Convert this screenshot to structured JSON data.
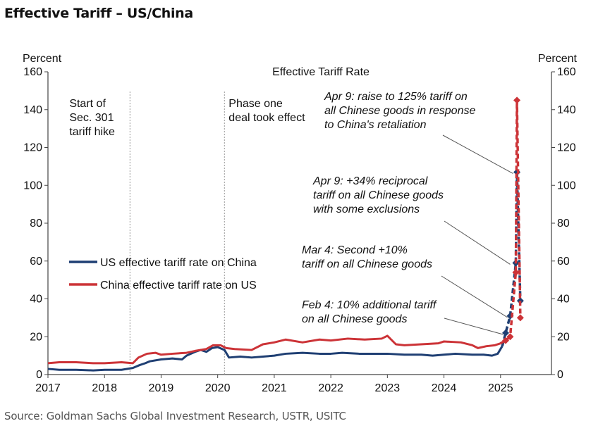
{
  "header": {
    "title": "Effective Tariff – US/China"
  },
  "footer": {
    "source": "Source: Goldman Sachs Global Investment Research, USTR, USITC"
  },
  "colors": {
    "us_series": "#1f3f73",
    "china_series": "#cc3337",
    "axis": "#444444",
    "vline": "#999999",
    "annotation_line": "#555555"
  },
  "chart_data": {
    "type": "line",
    "title": "Effective Tariff Rate",
    "ylabel_left": "Percent",
    "ylabel_right": "Percent",
    "ylim": [
      0,
      160
    ],
    "xlim": [
      2017,
      2025.9
    ],
    "yticks": [
      "0",
      "20",
      "40",
      "60",
      "80",
      "100",
      "120",
      "140",
      "160"
    ],
    "xticks": [
      "2017",
      "2018",
      "2019",
      "2020",
      "2021",
      "2022",
      "2023",
      "2024",
      "2025"
    ],
    "grid": false,
    "legend_position": "center-left",
    "series": [
      {
        "name": "US effective tariff rate on China",
        "x": [
          2017.0,
          2017.2,
          2017.5,
          2017.8,
          2018.0,
          2018.3,
          2018.5,
          2018.62,
          2018.72,
          2018.8,
          2019.0,
          2019.2,
          2019.37,
          2019.45,
          2019.6,
          2019.7,
          2019.8,
          2019.9,
          2020.0,
          2020.12,
          2020.2,
          2020.4,
          2020.6,
          2020.8,
          2021.0,
          2021.2,
          2021.5,
          2021.8,
          2022.0,
          2022.2,
          2022.5,
          2022.8,
          2023.0,
          2023.3,
          2023.6,
          2023.8,
          2024.0,
          2024.2,
          2024.5,
          2024.7,
          2024.85,
          2024.95,
          2025.03,
          2025.09,
          2025.17,
          2025.27,
          2025.29,
          2025.35
        ],
        "y": [
          3,
          2.5,
          2.5,
          2.2,
          2.5,
          2.5,
          3.5,
          5,
          6,
          7,
          8,
          8.5,
          8,
          10,
          12,
          13,
          12,
          14,
          14.5,
          13,
          9,
          9.5,
          9,
          9.5,
          10,
          11,
          11.5,
          11,
          11,
          11.5,
          11,
          11,
          11,
          10.5,
          10.5,
          10,
          10.5,
          11,
          10.5,
          10.5,
          10,
          11,
          15,
          22,
          31,
          59,
          107,
          39
        ]
      },
      {
        "name": "China effective tariff rate on US",
        "x": [
          2017.0,
          2017.2,
          2017.5,
          2017.8,
          2018.0,
          2018.3,
          2018.5,
          2018.6,
          2018.75,
          2018.9,
          2019.0,
          2019.2,
          2019.45,
          2019.6,
          2019.8,
          2019.92,
          2020.05,
          2020.15,
          2020.3,
          2020.6,
          2020.8,
          2021.0,
          2021.2,
          2021.5,
          2021.8,
          2022.0,
          2022.3,
          2022.6,
          2022.9,
          2023.0,
          2023.15,
          2023.3,
          2023.6,
          2023.9,
          2024.0,
          2024.3,
          2024.5,
          2024.6,
          2024.75,
          2024.9,
          2025.0,
          2025.09,
          2025.17,
          2025.27,
          2025.29,
          2025.35
        ],
        "y": [
          6,
          6.5,
          6.5,
          6,
          6,
          6.5,
          6,
          9,
          11,
          11.5,
          10.5,
          11,
          11.5,
          12.5,
          13.5,
          15.5,
          15.5,
          14,
          13.5,
          13,
          16,
          17,
          18.5,
          17,
          18.5,
          18,
          19,
          18.5,
          19,
          20.5,
          16,
          15.5,
          16,
          16.5,
          17.5,
          17,
          15.5,
          14,
          15,
          15.5,
          16.5,
          18,
          20,
          54,
          145,
          30
        ]
      }
    ],
    "vlines": [
      {
        "x": 2018.45,
        "label": [
          "Start of",
          "Sec. 301",
          "tariff hike"
        ]
      },
      {
        "x": 2020.12,
        "label": [
          "Phase one",
          "deal took effect"
        ]
      }
    ],
    "annotations": [
      {
        "text": [
          "Apr 9: raise to 125% tariff on",
          "all Chinese goods in response",
          "to China's retaliation"
        ],
        "point": [
          2025.27,
          107
        ]
      },
      {
        "text": [
          "Apr 9: +34% reciprocal",
          "tariff on all Chinese goods",
          "with some exclusions"
        ],
        "point": [
          2025.22,
          59
        ]
      },
      {
        "text": [
          "Mar 4: Second +10%",
          "tariff on all Chinese goods"
        ],
        "point": [
          2025.17,
          31
        ]
      },
      {
        "text": [
          "Feb 4: 10% additional tariff",
          "on all Chinese goods"
        ],
        "point": [
          2025.09,
          22
        ]
      }
    ]
  }
}
